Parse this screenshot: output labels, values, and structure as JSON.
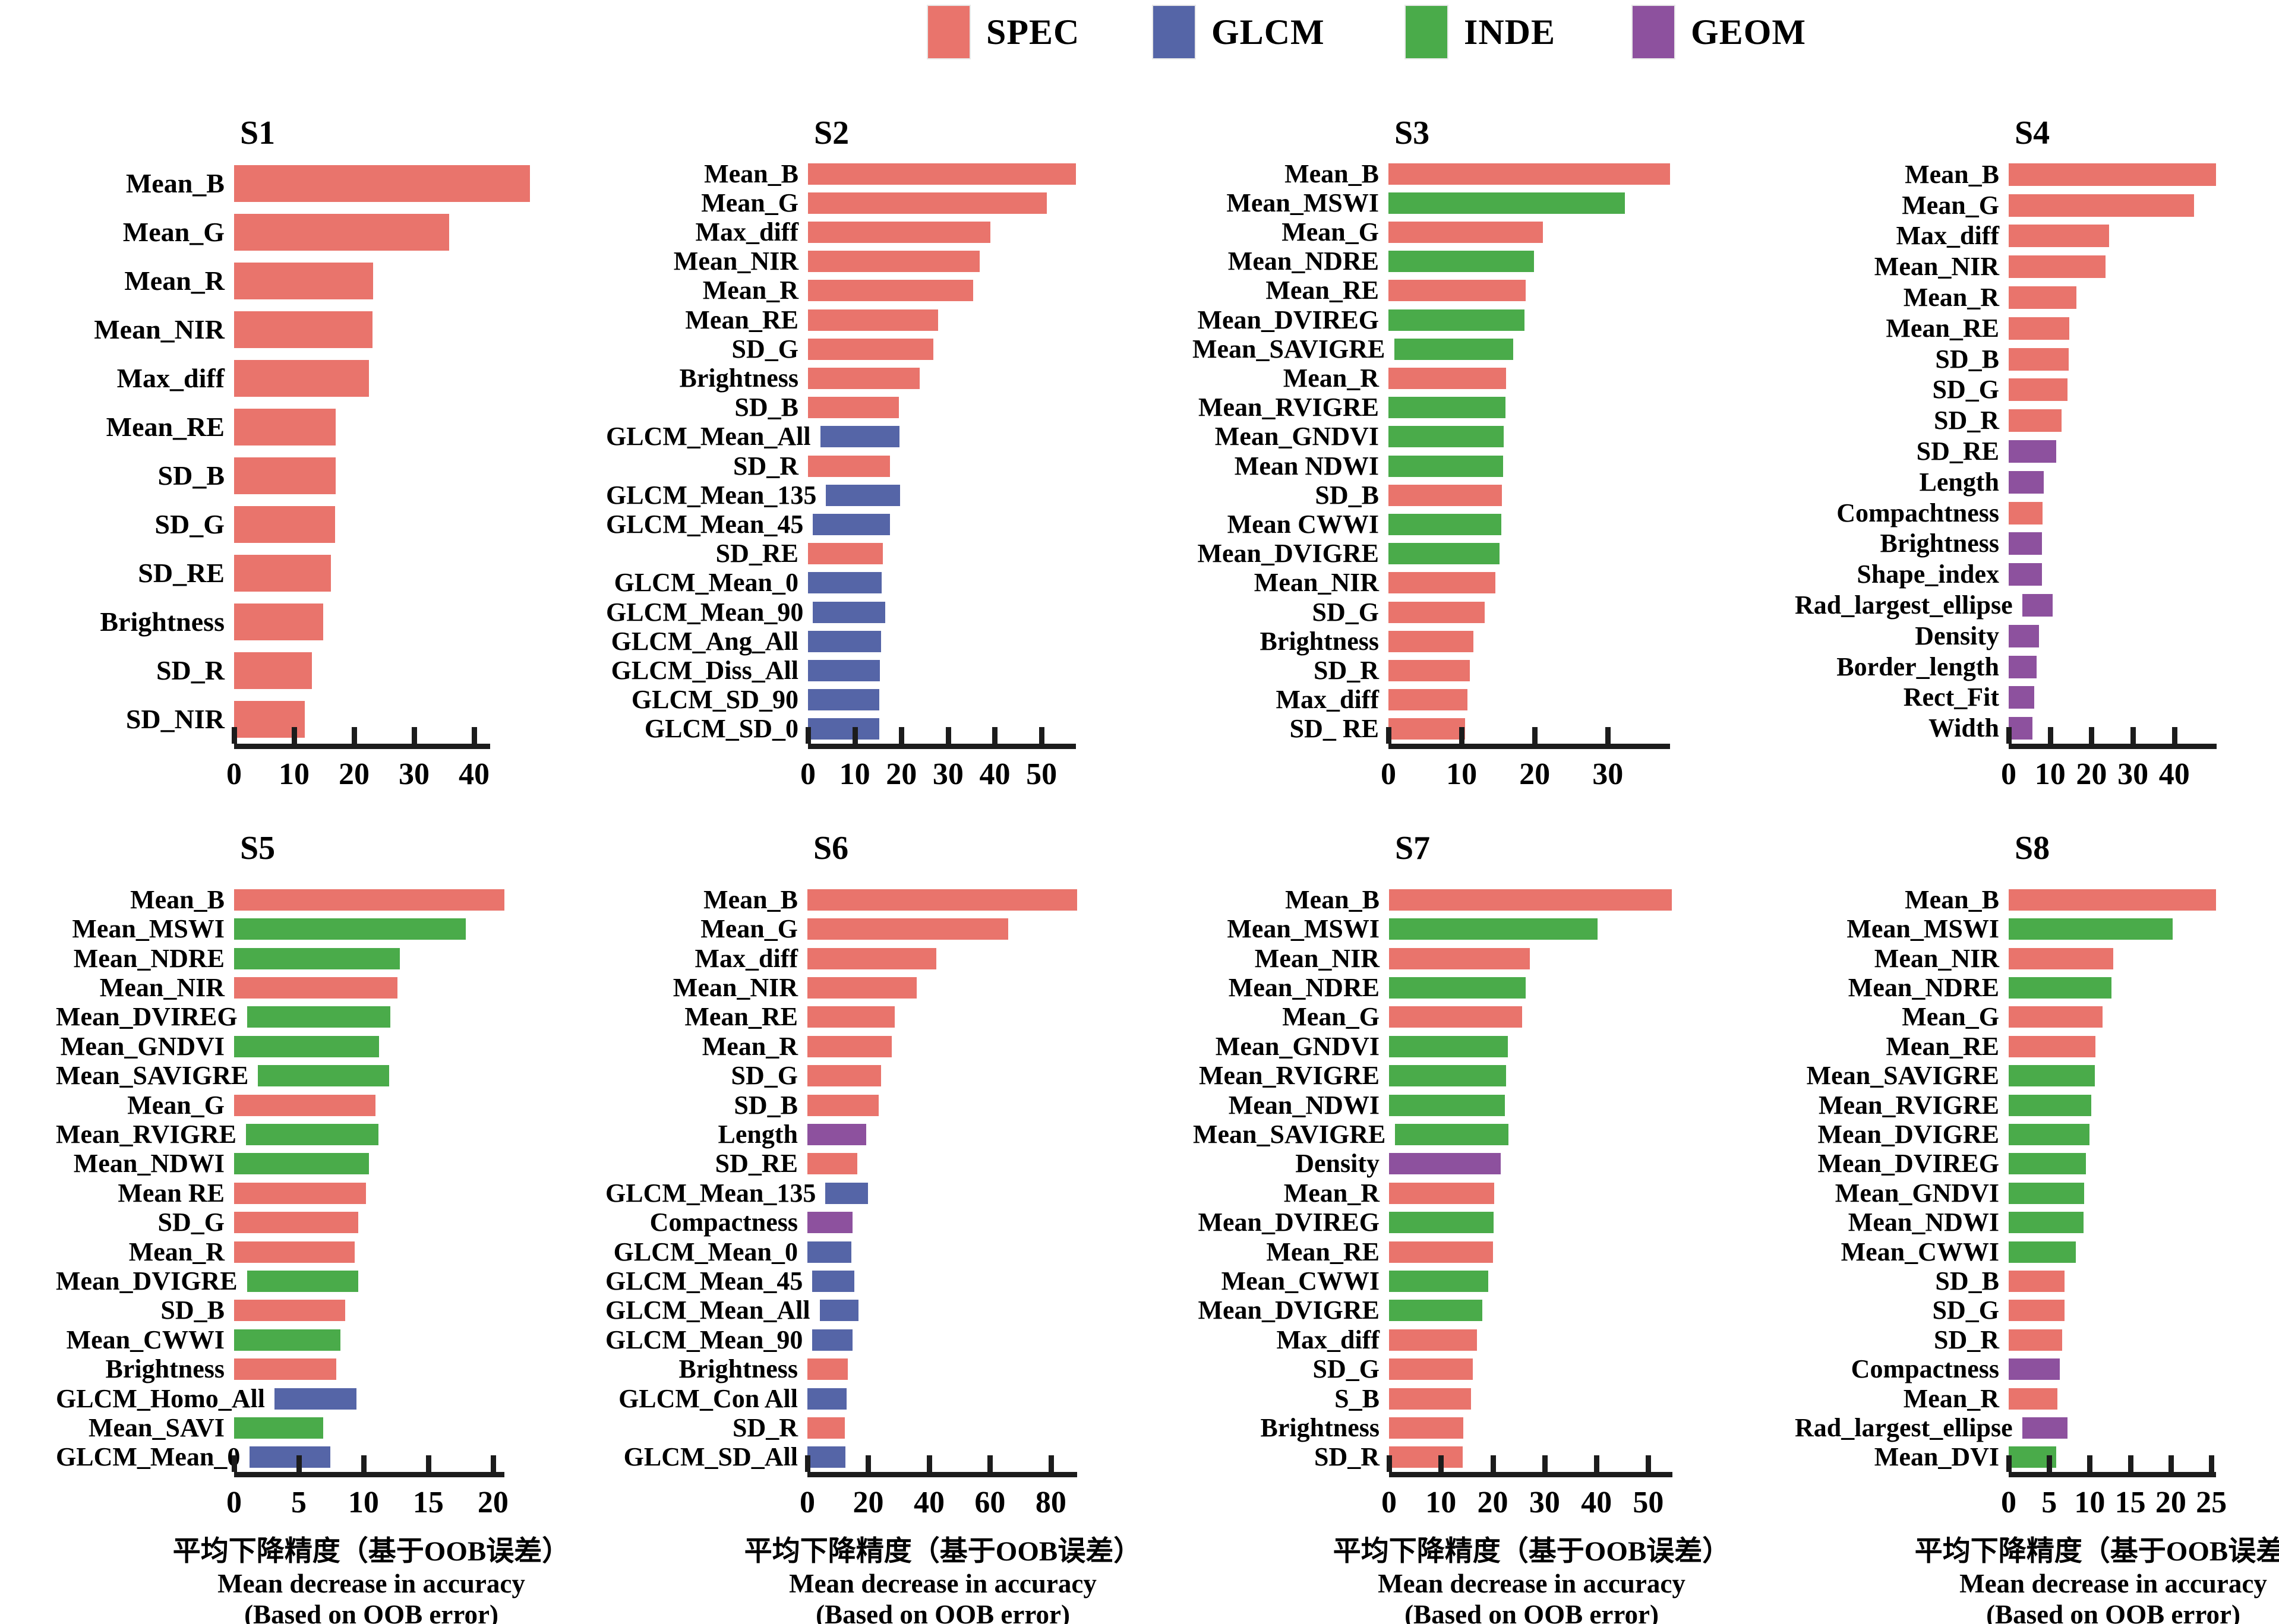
{
  "legend": {
    "items": [
      {
        "label": "SPEC",
        "key": "SPEC"
      },
      {
        "label": "GLCM",
        "key": "GLCM"
      },
      {
        "label": "INDE",
        "key": "INDE"
      },
      {
        "label": "GEOM",
        "key": "GEOM"
      }
    ]
  },
  "colors": {
    "SPEC": "#E9746C",
    "GLCM": "#5565A7",
    "INDE": "#4AAB4A",
    "GEOM": "#8D519E",
    "axis": "#1c1c1c",
    "text": "#000000"
  },
  "xlabel": {
    "zh": "平均下降精度（基于OOB误差）",
    "en": "Mean decrease in accuracy",
    "en2": "(Based on OOB error)"
  },
  "chart_data": [
    {
      "id": "S1",
      "title": "S1",
      "type": "bar",
      "orientation": "horizontal",
      "xlim": [
        0,
        50.5
      ],
      "ticks": [
        0,
        10,
        20,
        30,
        40
      ],
      "axis_end": 42.7,
      "grid": false,
      "legend_position": "top",
      "items": [
        {
          "label": "Mean_B",
          "group": "SPEC",
          "value": 49.3
        },
        {
          "label": "Mean_G",
          "group": "SPEC",
          "value": 35.8
        },
        {
          "label": "Mean_R",
          "group": "SPEC",
          "value": 23.2
        },
        {
          "label": "Mean_NIR",
          "group": "SPEC",
          "value": 23.1
        },
        {
          "label": "Max_diff",
          "group": "SPEC",
          "value": 22.5
        },
        {
          "label": "Mean_RE",
          "group": "SPEC",
          "value": 16.9
        },
        {
          "label": "SD_B",
          "group": "SPEC",
          "value": 16.9
        },
        {
          "label": "SD_G",
          "group": "SPEC",
          "value": 16.8
        },
        {
          "label": "SD_RE",
          "group": "SPEC",
          "value": 16.1
        },
        {
          "label": "Brightness",
          "group": "SPEC",
          "value": 14.9
        },
        {
          "label": "SD_R",
          "group": "SPEC",
          "value": 13.0
        },
        {
          "label": "SD_NIR",
          "group": "SPEC",
          "value": 11.8
        }
      ]
    },
    {
      "id": "S2",
      "title": "S2",
      "type": "bar",
      "orientation": "horizontal",
      "xlim": [
        0,
        58
      ],
      "ticks": [
        0,
        10,
        20,
        30,
        40,
        50
      ],
      "axis_end": 57.4,
      "grid": false,
      "legend_position": "top",
      "items": [
        {
          "label": "Mean_B",
          "group": "SPEC",
          "value": 57.4
        },
        {
          "label": "Mean_G",
          "group": "SPEC",
          "value": 51.1
        },
        {
          "label": "Max_diff",
          "group": "SPEC",
          "value": 39.1
        },
        {
          "label": "Mean_NIR",
          "group": "SPEC",
          "value": 36.7
        },
        {
          "label": "Mean_R",
          "group": "SPEC",
          "value": 35.3
        },
        {
          "label": "Mean_RE",
          "group": "SPEC",
          "value": 27.8
        },
        {
          "label": "SD_G",
          "group": "SPEC",
          "value": 26.8
        },
        {
          "label": "Brightness",
          "group": "SPEC",
          "value": 23.9
        },
        {
          "label": "SD_B",
          "group": "SPEC",
          "value": 19.4
        },
        {
          "label": "GLCM_Mean_All",
          "group": "GLCM",
          "value": 17.7
        },
        {
          "label": "SD_R",
          "group": "SPEC",
          "value": 17.5
        },
        {
          "label": "GLCM_Mean_135",
          "group": "GLCM",
          "value": 17.0
        },
        {
          "label": "GLCM_Mean_45",
          "group": "GLCM",
          "value": 16.8
        },
        {
          "label": "SD_RE",
          "group": "SPEC",
          "value": 16.0
        },
        {
          "label": "GLCM_Mean_0",
          "group": "GLCM",
          "value": 15.8
        },
        {
          "label": "GLCM_Mean_90",
          "group": "GLCM",
          "value": 15.8
        },
        {
          "label": "GLCM_Ang_All",
          "group": "GLCM",
          "value": 15.7
        },
        {
          "label": "GLCM_Diss_All",
          "group": "GLCM",
          "value": 15.4
        },
        {
          "label": "GLCM_SD_90",
          "group": "GLCM",
          "value": 15.3
        },
        {
          "label": "GLCM_SD_0",
          "group": "GLCM",
          "value": 15.3
        }
      ]
    },
    {
      "id": "S3",
      "title": "S3",
      "type": "bar",
      "orientation": "horizontal",
      "xlim": [
        0,
        39
      ],
      "ticks": [
        0,
        10,
        20,
        30
      ],
      "axis_end": 38.5,
      "grid": false,
      "legend_position": "top",
      "items": [
        {
          "label": "Mean_B",
          "group": "SPEC",
          "value": 38.5
        },
        {
          "label": "Mean_MSWI",
          "group": "INDE",
          "value": 32.3
        },
        {
          "label": "Mean_G",
          "group": "SPEC",
          "value": 21.1
        },
        {
          "label": "Mean_NDRE",
          "group": "INDE",
          "value": 19.9
        },
        {
          "label": "Mean_RE",
          "group": "SPEC",
          "value": 18.8
        },
        {
          "label": "Mean_DVIREG",
          "group": "INDE",
          "value": 18.6
        },
        {
          "label": "Mean_SAVIGRE",
          "group": "INDE",
          "value": 16.6
        },
        {
          "label": "Mean_R",
          "group": "SPEC",
          "value": 16.1
        },
        {
          "label": "Mean_RVIGRE",
          "group": "INDE",
          "value": 16.0
        },
        {
          "label": "Mean_GNDVI",
          "group": "INDE",
          "value": 15.8
        },
        {
          "label": "Mean NDWI",
          "group": "INDE",
          "value": 15.7
        },
        {
          "label": "SD_B",
          "group": "SPEC",
          "value": 15.5
        },
        {
          "label": "Mean CWWI",
          "group": "INDE",
          "value": 15.4
        },
        {
          "label": "Mean_DVIGRE",
          "group": "INDE",
          "value": 15.2
        },
        {
          "label": "Mean_NIR",
          "group": "SPEC",
          "value": 14.6
        },
        {
          "label": "SD_G",
          "group": "SPEC",
          "value": 13.2
        },
        {
          "label": "Brightness",
          "group": "SPEC",
          "value": 11.6
        },
        {
          "label": "SD_R",
          "group": "SPEC",
          "value": 11.1
        },
        {
          "label": "Max_diff",
          "group": "SPEC",
          "value": 10.8
        },
        {
          "label": "SD_ RE",
          "group": "SPEC",
          "value": 10.5
        }
      ]
    },
    {
      "id": "S4",
      "title": "S4",
      "type": "bar",
      "orientation": "horizontal",
      "xlim": [
        0,
        50.5
      ],
      "ticks": [
        0,
        10,
        20,
        30,
        40
      ],
      "axis_end": 50.2,
      "grid": false,
      "legend_position": "top",
      "items": [
        {
          "label": "Mean_B",
          "group": "SPEC",
          "value": 50.1
        },
        {
          "label": "Mean_G",
          "group": "SPEC",
          "value": 44.7
        },
        {
          "label": "Max_diff",
          "group": "SPEC",
          "value": 24.3
        },
        {
          "label": "Mean_NIR",
          "group": "SPEC",
          "value": 23.4
        },
        {
          "label": "Mean_R",
          "group": "SPEC",
          "value": 16.4
        },
        {
          "label": "Mean_RE",
          "group": "SPEC",
          "value": 14.7
        },
        {
          "label": "SD_B",
          "group": "SPEC",
          "value": 14.5
        },
        {
          "label": "SD_G",
          "group": "SPEC",
          "value": 14.2
        },
        {
          "label": "SD_R",
          "group": "SPEC",
          "value": 12.8
        },
        {
          "label": "SD_RE",
          "group": "GEOM",
          "value": 11.5
        },
        {
          "label": "Length",
          "group": "GEOM",
          "value": 8.4
        },
        {
          "label": "Compachtness",
          "group": "SPEC",
          "value": 8.2
        },
        {
          "label": "Brightness",
          "group": "GEOM",
          "value": 8.0
        },
        {
          "label": "Shape_index",
          "group": "GEOM",
          "value": 8.0
        },
        {
          "label": "Rad_largest_ellipse",
          "group": "GEOM",
          "value": 7.8
        },
        {
          "label": "Density",
          "group": "GEOM",
          "value": 7.3
        },
        {
          "label": "Border_length",
          "group": "GEOM",
          "value": 6.7
        },
        {
          "label": "Rect_Fit",
          "group": "GEOM",
          "value": 6.2
        },
        {
          "label": "Width",
          "group": "GEOM",
          "value": 5.8
        }
      ]
    },
    {
      "id": "S5",
      "title": "S5",
      "type": "bar",
      "orientation": "horizontal",
      "xlim": [
        0,
        21.2
      ],
      "ticks": [
        0,
        5,
        10,
        15,
        20
      ],
      "axis_end": 20.9,
      "grid": false,
      "legend_position": "top",
      "items": [
        {
          "label": "Mean_B",
          "group": "SPEC",
          "value": 20.9
        },
        {
          "label": "Mean_MSWI",
          "group": "INDE",
          "value": 17.9
        },
        {
          "label": "Mean_NDRE",
          "group": "INDE",
          "value": 12.8
        },
        {
          "label": "Mean_NIR",
          "group": "SPEC",
          "value": 12.6
        },
        {
          "label": "Mean_DVIREG",
          "group": "INDE",
          "value": 11.6
        },
        {
          "label": "Mean_GNDVI",
          "group": "INDE",
          "value": 11.2
        },
        {
          "label": "Mean_SAVIGRE",
          "group": "INDE",
          "value": 11.1
        },
        {
          "label": "Mean_G",
          "group": "SPEC",
          "value": 10.9
        },
        {
          "label": "Mean_RVIGRE",
          "group": "INDE",
          "value": 10.7
        },
        {
          "label": "Mean_NDWI",
          "group": "INDE",
          "value": 10.4
        },
        {
          "label": "Mean RE",
          "group": "SPEC",
          "value": 10.2
        },
        {
          "label": "SD_G",
          "group": "SPEC",
          "value": 9.6
        },
        {
          "label": "Mean_R",
          "group": "SPEC",
          "value": 9.3
        },
        {
          "label": "Mean_DVIGRE",
          "group": "INDE",
          "value": 9.0
        },
        {
          "label": "SD_B",
          "group": "SPEC",
          "value": 8.6
        },
        {
          "label": "Mean_CWWI",
          "group": "INDE",
          "value": 8.2
        },
        {
          "label": "Brightness",
          "group": "SPEC",
          "value": 7.9
        },
        {
          "label": "GLCM_Homo_All",
          "group": "GLCM",
          "value": 7.4
        },
        {
          "label": "Mean_SAVI",
          "group": "INDE",
          "value": 6.9
        },
        {
          "label": "GLCM_Mean_0",
          "group": "GLCM",
          "value": 6.6
        }
      ]
    },
    {
      "id": "S6",
      "title": "S6",
      "type": "bar",
      "orientation": "horizontal",
      "xlim": [
        0,
        89
      ],
      "ticks": [
        0,
        20,
        40,
        60,
        80
      ],
      "axis_end": 88.7,
      "grid": false,
      "legend_position": "top",
      "items": [
        {
          "label": "Mean_B",
          "group": "SPEC",
          "value": 88.7
        },
        {
          "label": "Mean_G",
          "group": "SPEC",
          "value": 65.9
        },
        {
          "label": "Max_diff",
          "group": "SPEC",
          "value": 42.4
        },
        {
          "label": "Mean_NIR",
          "group": "SPEC",
          "value": 35.9
        },
        {
          "label": "Mean_RE",
          "group": "SPEC",
          "value": 28.6
        },
        {
          "label": "Mean_R",
          "group": "SPEC",
          "value": 27.7
        },
        {
          "label": "SD_G",
          "group": "SPEC",
          "value": 24.2
        },
        {
          "label": "SD_B",
          "group": "SPEC",
          "value": 23.4
        },
        {
          "label": "Length",
          "group": "GEOM",
          "value": 19.3
        },
        {
          "label": "SD_RE",
          "group": "SPEC",
          "value": 16.3
        },
        {
          "label": "GLCM_Mean_135",
          "group": "GLCM",
          "value": 14.9
        },
        {
          "label": "Compactness",
          "group": "GEOM",
          "value": 14.8
        },
        {
          "label": "GLCM_Mean_0",
          "group": "GLCM",
          "value": 14.5
        },
        {
          "label": "GLCM_Mean_45",
          "group": "GLCM",
          "value": 14.1
        },
        {
          "label": "GLCM_Mean_All",
          "group": "GLCM",
          "value": 13.4
        },
        {
          "label": "GLCM_Mean_90",
          "group": "GLCM",
          "value": 13.4
        },
        {
          "label": "Brightness",
          "group": "SPEC",
          "value": 13.2
        },
        {
          "label": "GLCM_Con All",
          "group": "GLCM",
          "value": 12.8
        },
        {
          "label": "SD_R",
          "group": "SPEC",
          "value": 12.2
        },
        {
          "label": "GLCM_SD_All",
          "group": "GLCM",
          "value": 12.5
        }
      ]
    },
    {
      "id": "S7",
      "title": "S7",
      "type": "bar",
      "orientation": "horizontal",
      "xlim": [
        0,
        55
      ],
      "ticks": [
        0,
        10,
        20,
        30,
        40,
        50
      ],
      "axis_end": 54.6,
      "grid": false,
      "legend_position": "top",
      "items": [
        {
          "label": "Mean_B",
          "group": "SPEC",
          "value": 54.5
        },
        {
          "label": "Mean_MSWI",
          "group": "INDE",
          "value": 40.2
        },
        {
          "label": "Mean_NIR",
          "group": "SPEC",
          "value": 27.1
        },
        {
          "label": "Mean_NDRE",
          "group": "INDE",
          "value": 26.3
        },
        {
          "label": "Mean_G",
          "group": "SPEC",
          "value": 25.7
        },
        {
          "label": "Mean_GNDVI",
          "group": "INDE",
          "value": 22.9
        },
        {
          "label": "Mean_RVIGRE",
          "group": "INDE",
          "value": 22.6
        },
        {
          "label": "Mean_NDWI",
          "group": "INDE",
          "value": 22.4
        },
        {
          "label": "Mean_SAVIGRE",
          "group": "INDE",
          "value": 22.3
        },
        {
          "label": "Density",
          "group": "GEOM",
          "value": 21.5
        },
        {
          "label": "Mean_R",
          "group": "SPEC",
          "value": 20.3
        },
        {
          "label": "Mean_DVIREG",
          "group": "INDE",
          "value": 20.2
        },
        {
          "label": "Mean_RE",
          "group": "SPEC",
          "value": 20.1
        },
        {
          "label": "Mean_CWWI",
          "group": "INDE",
          "value": 19.1
        },
        {
          "label": "Mean_DVIGRE",
          "group": "INDE",
          "value": 18.0
        },
        {
          "label": "Max_diff",
          "group": "SPEC",
          "value": 17.0
        },
        {
          "label": "SD_G",
          "group": "SPEC",
          "value": 16.2
        },
        {
          "label": "S_B",
          "group": "SPEC",
          "value": 15.8
        },
        {
          "label": "Brightness",
          "group": "SPEC",
          "value": 14.3
        },
        {
          "label": "SD_R",
          "group": "SPEC",
          "value": 14.2
        }
      ]
    },
    {
      "id": "S8",
      "title": "S8",
      "type": "bar",
      "orientation": "horizontal",
      "xlim": [
        0,
        25.8
      ],
      "ticks": [
        0,
        5,
        10,
        15,
        20,
        25
      ],
      "axis_end": 25.6,
      "grid": false,
      "legend_position": "top",
      "items": [
        {
          "label": "Mean_B",
          "group": "SPEC",
          "value": 25.6
        },
        {
          "label": "Mean_MSWI",
          "group": "INDE",
          "value": 20.2
        },
        {
          "label": "Mean_NIR",
          "group": "SPEC",
          "value": 12.9
        },
        {
          "label": "Mean_NDRE",
          "group": "INDE",
          "value": 12.7
        },
        {
          "label": "Mean_G",
          "group": "SPEC",
          "value": 11.6
        },
        {
          "label": "Mean_RE",
          "group": "SPEC",
          "value": 10.7
        },
        {
          "label": "Mean_SAVIGRE",
          "group": "INDE",
          "value": 10.6
        },
        {
          "label": "Mean_RVIGRE",
          "group": "INDE",
          "value": 10.2
        },
        {
          "label": "Mean_DVIGRE",
          "group": "INDE",
          "value": 10.0
        },
        {
          "label": "Mean_DVIREG",
          "group": "INDE",
          "value": 9.5
        },
        {
          "label": "Mean_GNDVI",
          "group": "INDE",
          "value": 9.3
        },
        {
          "label": "Mean_NDWI",
          "group": "INDE",
          "value": 9.2
        },
        {
          "label": "Mean_CWWI",
          "group": "INDE",
          "value": 8.3
        },
        {
          "label": "SD_B",
          "group": "SPEC",
          "value": 6.9
        },
        {
          "label": "SD_G",
          "group": "SPEC",
          "value": 6.9
        },
        {
          "label": "SD_R",
          "group": "SPEC",
          "value": 6.6
        },
        {
          "label": "Compactness",
          "group": "GEOM",
          "value": 6.3
        },
        {
          "label": "Mean_R",
          "group": "SPEC",
          "value": 6.0
        },
        {
          "label": "Rad_largest_ellipse",
          "group": "GEOM",
          "value": 6.0
        },
        {
          "label": "Mean_DVI",
          "group": "INDE",
          "value": 5.9
        }
      ]
    }
  ]
}
